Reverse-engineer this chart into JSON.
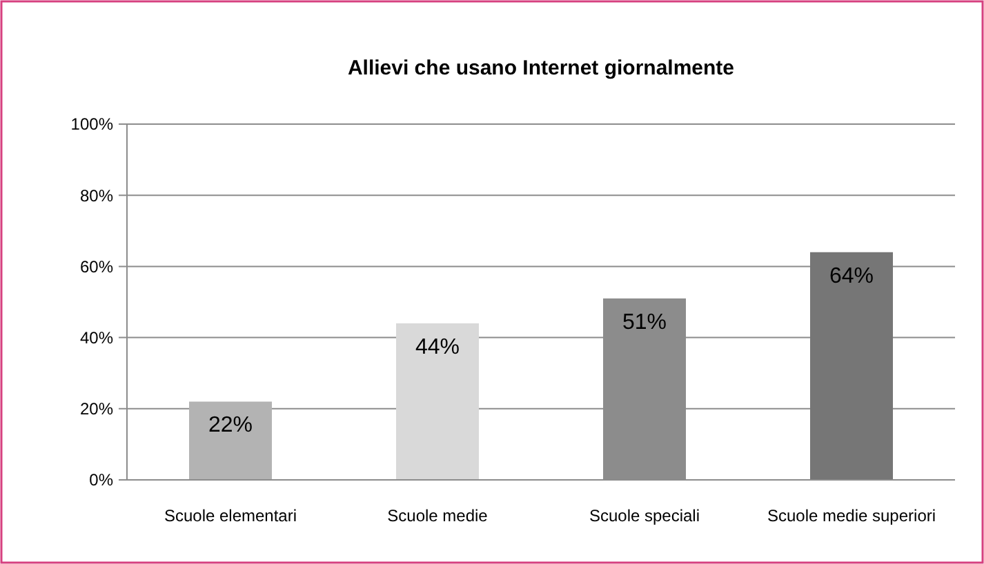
{
  "chart_data": {
    "type": "bar",
    "title": "Allievi che usano Internet giornalmente",
    "categories": [
      "Scuole elementari",
      "Scuole medie",
      "Scuole speciali",
      "Scuole medie superiori"
    ],
    "values": [
      22,
      44,
      51,
      64
    ],
    "colors": [
      "#b3b3b3",
      "#d9d9d9",
      "#8c8c8c",
      "#767676"
    ],
    "value_labels": [
      "22%",
      "44%",
      "51%",
      "64%"
    ],
    "ylim": [
      0,
      100
    ],
    "yticks": [
      {
        "value": 0,
        "label": "0%"
      },
      {
        "value": 20,
        "label": "20%"
      },
      {
        "value": 40,
        "label": "40%"
      },
      {
        "value": 60,
        "label": "60%"
      },
      {
        "value": 80,
        "label": "80%"
      },
      {
        "value": 100,
        "label": "100%"
      }
    ],
    "grid": "y"
  }
}
